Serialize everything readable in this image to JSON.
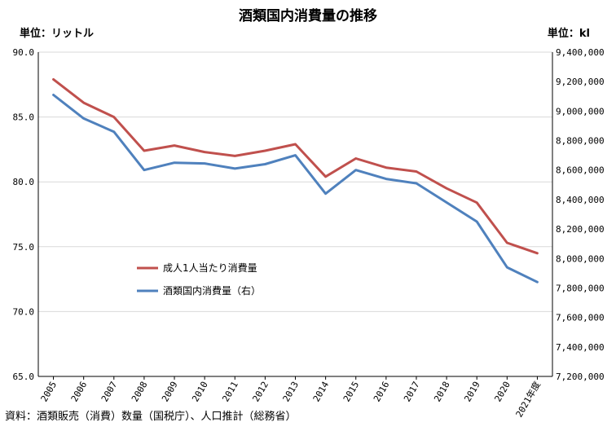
{
  "chart_data": {
    "type": "line",
    "title": "酒類国内消費量の推移",
    "left_unit": "単位：リットル",
    "right_unit": "単位：kl",
    "source": "資料：酒類販売（消費）数量（国税庁）、人口推計（総務省）",
    "categories": [
      "2005",
      "2006",
      "2007",
      "2008",
      "2009",
      "2010",
      "2011",
      "2012",
      "2013",
      "2014",
      "2015",
      "2016",
      "2017",
      "2018",
      "2019",
      "2020",
      "2021年度"
    ],
    "y_left": {
      "min": 65,
      "max": 90,
      "step": 5,
      "tick_labels": [
        "65.0",
        "70.0",
        "75.0",
        "80.0",
        "85.0",
        "90.0"
      ]
    },
    "y_right": {
      "min": 7200000,
      "max": 9400000,
      "step": 200000,
      "tick_labels": [
        "7,200,000",
        "7,400,000",
        "7,600,000",
        "7,800,000",
        "8,000,000",
        "8,200,000",
        "8,400,000",
        "8,600,000",
        "8,800,000",
        "9,000,000",
        "9,200,000",
        "9,400,000"
      ]
    },
    "series": [
      {
        "name": "成人1人当たり消費量",
        "axis": "left",
        "color": "#c0504d",
        "values": [
          87.9,
          86.1,
          85.0,
          82.4,
          82.8,
          82.3,
          82.0,
          82.4,
          82.9,
          80.4,
          81.8,
          81.1,
          80.8,
          79.5,
          78.4,
          75.3,
          74.5
        ]
      },
      {
        "name": "酒類国内消費量（右）",
        "axis": "right",
        "color": "#4f81bd",
        "values": [
          9110000,
          8950000,
          8860000,
          8600000,
          8650000,
          8645000,
          8610000,
          8640000,
          8700000,
          8440000,
          8600000,
          8540000,
          8510000,
          8380000,
          8250000,
          7940000,
          7840000
        ]
      }
    ],
    "grid": true,
    "legend": "center-left"
  },
  "colors": {
    "gridline": "#d9d9d9",
    "axis": "#000000"
  }
}
